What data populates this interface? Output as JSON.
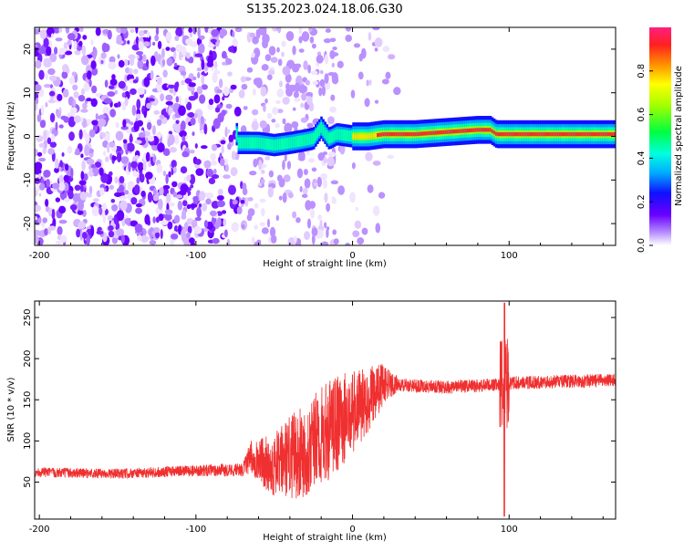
{
  "title": "S135.2023.024.18.06.G30",
  "chart_data": [
    {
      "type": "heatmap",
      "xlabel": "Height of straight line (km)",
      "ylabel": "Frequency (Hz)",
      "xlim": [
        -203,
        168
      ],
      "ylim": [
        -25,
        25
      ],
      "xticks": [
        -200,
        -100,
        0,
        100
      ],
      "yticks": [
        -20,
        -10,
        0,
        10,
        20
      ],
      "colorbar": {
        "label": "Normalized spectral amplitude",
        "range": [
          0,
          1
        ],
        "ticks": [
          0.0,
          0.2,
          0.4,
          0.6,
          0.8
        ]
      },
      "ridge": {
        "x": [
          -73,
          -60,
          -50,
          -40,
          -32,
          -25,
          -20,
          -15,
          -10,
          0,
          10,
          20,
          40,
          60,
          80,
          88,
          92,
          110,
          130,
          150,
          168
        ],
        "freq_hz": [
          -1.5,
          -1.5,
          -2,
          -1.5,
          -1,
          -0.5,
          2,
          -0.5,
          0.5,
          0,
          0,
          0.5,
          0.5,
          1,
          1.5,
          1.5,
          0.5,
          0.5,
          0.5,
          0.5,
          0.5
        ]
      },
      "colors": {
        "noise": "#7a1fff",
        "ridge_core": "#f03030"
      }
    },
    {
      "type": "line",
      "xlabel": "Height of straight line (km)",
      "ylabel": "SNR (10 * v/v)",
      "xlim": [
        -203,
        168
      ],
      "ylim": [
        5,
        270
      ],
      "xticks": [
        -200,
        -100,
        0,
        100
      ],
      "yticks": [
        50,
        100,
        150,
        200,
        250
      ],
      "series_color": "#f03030",
      "envelope": [
        {
          "x": -203,
          "mid": 62,
          "amp": 6
        },
        {
          "x": -150,
          "mid": 60,
          "amp": 6
        },
        {
          "x": -100,
          "mid": 64,
          "amp": 7
        },
        {
          "x": -70,
          "mid": 65,
          "amp": 8
        },
        {
          "x": -65,
          "mid": 80,
          "amp": 20
        },
        {
          "x": -50,
          "mid": 70,
          "amp": 40
        },
        {
          "x": -30,
          "mid": 90,
          "amp": 60
        },
        {
          "x": -10,
          "mid": 120,
          "amp": 60
        },
        {
          "x": 10,
          "mid": 150,
          "amp": 40
        },
        {
          "x": 20,
          "mid": 170,
          "amp": 25
        },
        {
          "x": 30,
          "mid": 168,
          "amp": 8
        },
        {
          "x": 60,
          "mid": 165,
          "amp": 8
        },
        {
          "x": 90,
          "mid": 168,
          "amp": 8
        },
        {
          "x": 100,
          "mid": 170,
          "amp": 8
        },
        {
          "x": 130,
          "mid": 172,
          "amp": 8
        },
        {
          "x": 168,
          "mid": 174,
          "amp": 8
        }
      ],
      "spike": {
        "x": 97,
        "max": 268,
        "min": 8
      }
    }
  ]
}
